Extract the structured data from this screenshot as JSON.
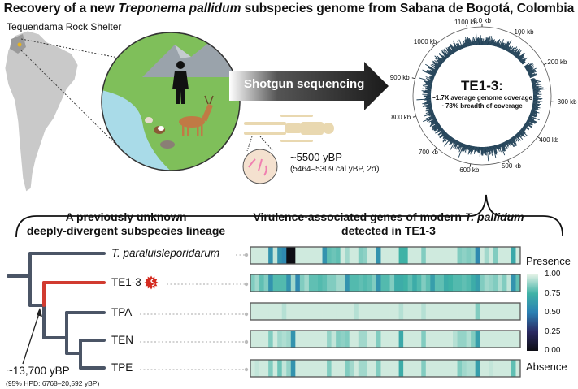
{
  "title": {
    "part1": "Recovery of a new ",
    "italic": "Treponema pallidum",
    "part2": " subspecies genome from Sabana de Bogotá, Colombia"
  },
  "site_label": "Tequendama Rock Shelter",
  "arrow_label": "Shotgun sequencing",
  "skeleton_date": {
    "main": "~5500 yBP",
    "sub": "(5464–5309 cal yBP, 2σ)"
  },
  "genome": {
    "sample": "TE1-3:",
    "coverage": "~1.7X average genome coverage",
    "breadth": "~78% breadth of coverage",
    "ticks": [
      "0.0 kb",
      "100 kb",
      "200 kb",
      "300 kb",
      "400 kb",
      "500 kb",
      "600 kb",
      "700 kb",
      "800 kb",
      "900 kb",
      "1000 kb",
      "1100 kb"
    ]
  },
  "tree": {
    "heading_line1": "A previously unknown",
    "heading_line2": "deeply-divergent subspecies lineage",
    "taxa": [
      "T. paraluisleporidarum",
      "TE1-3",
      "TPA",
      "TEN",
      "TPE"
    ],
    "node_date": "~13,700 yBP",
    "node_hpd": "(95% HPD: 6768–20,592 yBP)",
    "colors": {
      "branch": "#4b5566",
      "highlight": "#d13b30"
    }
  },
  "chart_data": {
    "type": "heatmap",
    "title_line1": "Virulence-associated genes of modern ",
    "title_italic": "T. pallidum",
    "title_line2": "detected in TE1-3",
    "rows": [
      "T. paraluisleporidarum",
      "TE1-3",
      "TPA",
      "TEN",
      "TPE"
    ],
    "legend": {
      "top": "Presence",
      "bottom": "Absence",
      "ticks": [
        "1.00",
        "0.75",
        "0.50",
        "0.25",
        "0.00"
      ],
      "range": [
        0,
        1
      ]
    },
    "colorscale": [
      "#0d0d14",
      "#2b2a62",
      "#2b7fb3",
      "#3fb2a6",
      "#e3f2e6"
    ],
    "values": [
      [
        0.97,
        0.97,
        0.97,
        0.97,
        0.6,
        0.95,
        0.6,
        0.55,
        0.0,
        0.0,
        0.97,
        0.97,
        0.97,
        0.97,
        0.97,
        0.97,
        0.6,
        0.8,
        0.82,
        0.8,
        0.97,
        0.9,
        0.97,
        0.97,
        0.85,
        0.87,
        0.97,
        0.97,
        0.6,
        0.97,
        0.97,
        0.97,
        0.97,
        0.75,
        0.75,
        0.97,
        0.97,
        0.97,
        0.85,
        0.97,
        0.97,
        0.97,
        0.97,
        0.97,
        0.97,
        0.97,
        0.85,
        0.87,
        0.85,
        0.87,
        0.55,
        0.97,
        0.9,
        0.97,
        0.85,
        0.97,
        0.97,
        0.97,
        0.7,
        0.97
      ],
      [
        0.85,
        0.9,
        0.8,
        0.85,
        0.6,
        0.78,
        0.78,
        0.78,
        0.6,
        0.9,
        0.55,
        0.85,
        0.9,
        0.8,
        0.8,
        0.78,
        0.8,
        0.85,
        0.85,
        0.9,
        0.9,
        0.6,
        0.78,
        0.78,
        0.8,
        0.78,
        0.8,
        0.85,
        0.6,
        0.78,
        0.78,
        0.85,
        0.72,
        0.72,
        0.75,
        0.8,
        0.72,
        0.78,
        0.85,
        0.8,
        0.65,
        0.8,
        0.8,
        0.72,
        0.75,
        0.78,
        0.78,
        0.8,
        0.78,
        0.72,
        0.65,
        0.85,
        0.9,
        0.88,
        0.85,
        0.92,
        0.85,
        0.95,
        0.6,
        0.8
      ],
      [
        0.97,
        0.97,
        0.97,
        0.97,
        0.97,
        0.97,
        0.97,
        0.93,
        0.97,
        0.97,
        0.97,
        0.97,
        0.97,
        0.97,
        0.97,
        0.97,
        0.97,
        0.97,
        0.97,
        0.97,
        0.97,
        0.97,
        0.97,
        0.93,
        0.97,
        0.97,
        0.97,
        0.97,
        0.97,
        0.97,
        0.97,
        0.97,
        0.97,
        0.93,
        0.97,
        0.97,
        0.97,
        0.97,
        0.93,
        0.97,
        0.97,
        0.97,
        0.97,
        0.97,
        0.97,
        0.97,
        0.97,
        0.97,
        0.97,
        0.97,
        0.85,
        0.97,
        0.97,
        0.97,
        0.97,
        0.97,
        0.97,
        0.97,
        0.97,
        0.97
      ],
      [
        0.97,
        0.97,
        0.97,
        0.97,
        0.85,
        0.97,
        0.9,
        0.92,
        0.9,
        0.6,
        0.97,
        0.97,
        0.97,
        0.97,
        0.97,
        0.97,
        0.97,
        0.88,
        0.95,
        0.85,
        0.87,
        0.85,
        0.97,
        0.97,
        0.9,
        0.9,
        0.97,
        0.97,
        0.85,
        0.97,
        0.97,
        0.97,
        0.97,
        0.7,
        0.97,
        0.97,
        0.97,
        0.97,
        0.85,
        0.97,
        0.97,
        0.97,
        0.97,
        0.97,
        0.97,
        0.93,
        0.88,
        0.88,
        0.92,
        0.85,
        0.65,
        0.97,
        0.97,
        0.97,
        0.97,
        0.97,
        0.97,
        0.97,
        0.97,
        0.97
      ],
      [
        0.97,
        0.95,
        0.97,
        0.97,
        0.85,
        0.97,
        0.82,
        0.95,
        0.88,
        0.6,
        0.97,
        0.97,
        0.97,
        0.97,
        0.97,
        0.97,
        0.97,
        0.85,
        0.97,
        0.97,
        0.97,
        0.85,
        0.9,
        0.97,
        0.9,
        0.9,
        0.97,
        0.97,
        0.85,
        0.97,
        0.97,
        0.97,
        0.97,
        0.72,
        0.97,
        0.97,
        0.97,
        0.97,
        0.85,
        0.97,
        0.97,
        0.97,
        0.97,
        0.97,
        0.97,
        0.97,
        0.85,
        0.9,
        0.92,
        0.92,
        0.65,
        0.97,
        0.97,
        0.95,
        0.97,
        0.97,
        0.97,
        0.97,
        0.8,
        0.97
      ]
    ]
  }
}
